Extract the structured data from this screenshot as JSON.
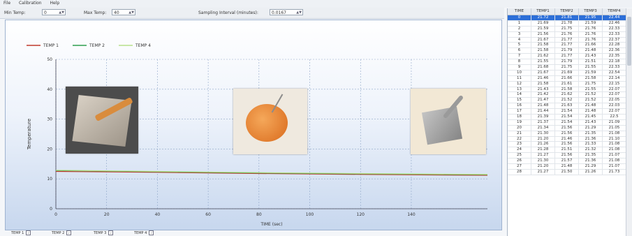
{
  "menu": [
    "File",
    "Calibration",
    "Help"
  ],
  "toolbar": {
    "min_label": "Min Temp:",
    "min_value": "0",
    "max_label": "Max Temp:",
    "max_value": "40",
    "interval_label": "Sampling Interval (minutes):",
    "interval_value": "0.0167"
  },
  "chart_data": {
    "type": "line",
    "xlabel": "TIME (sec)",
    "ylabel": "Temperature",
    "xlim": [
      0,
      170
    ],
    "ylim": [
      0,
      50
    ],
    "xticks": [
      0,
      20,
      40,
      60,
      80,
      100,
      120,
      140
    ],
    "yticks": [
      0,
      10,
      20,
      30,
      40,
      50
    ],
    "grid": true,
    "legend_position": "top-left",
    "series": [
      {
        "name": "TEMP 1",
        "color": "#c0392b",
        "x": [
          0,
          40,
          80,
          120,
          170
        ],
        "values": [
          12.5,
          12.2,
          11.8,
          11.5,
          11.2
        ]
      },
      {
        "name": "TEMP 2",
        "color": "#2e9e4f",
        "x": [
          0,
          40,
          80,
          120,
          170
        ],
        "values": [
          12.8,
          12.4,
          12.0,
          11.7,
          11.4
        ]
      },
      {
        "name": "TEMP 4",
        "color": "#b8e08a",
        "x": [
          0,
          40,
          80,
          120,
          170
        ],
        "values": [
          12.9,
          12.5,
          12.1,
          11.8,
          11.5
        ]
      }
    ]
  },
  "checkboxes": [
    {
      "label": "TEMP 1",
      "checked": "✓"
    },
    {
      "label": "TEMP 2",
      "checked": "✓"
    },
    {
      "label": "TEMP 3",
      "checked": "✓"
    },
    {
      "label": "TEMP 4",
      "checked": "✓"
    }
  ],
  "table": {
    "headers": [
      "TIME",
      "TEMP1",
      "TEMP2",
      "TEMP3",
      "TEMP4"
    ],
    "selected_row": 0,
    "rows": [
      [
        "0",
        "21.72",
        "21.81",
        "21.95",
        "22.44"
      ],
      [
        "1",
        "21.69",
        "21.78",
        "21.59",
        "22.46"
      ],
      [
        "2",
        "21.59",
        "21.75",
        "21.76",
        "22.33"
      ],
      [
        "3",
        "21.56",
        "21.76",
        "21.76",
        "22.33"
      ],
      [
        "4",
        "21.67",
        "21.77",
        "21.76",
        "22.37"
      ],
      [
        "5",
        "21.58",
        "21.77",
        "21.66",
        "22.28"
      ],
      [
        "6",
        "21.58",
        "21.79",
        "21.48",
        "22.36"
      ],
      [
        "7",
        "21.62",
        "21.77",
        "21.43",
        "22.35"
      ],
      [
        "8",
        "21.55",
        "21.79",
        "21.51",
        "22.18"
      ],
      [
        "9",
        "21.68",
        "21.75",
        "21.55",
        "22.33"
      ],
      [
        "10",
        "21.67",
        "21.69",
        "21.59",
        "22.54"
      ],
      [
        "11",
        "21.46",
        "21.66",
        "21.58",
        "22.14"
      ],
      [
        "12",
        "21.58",
        "21.61",
        "21.75",
        "22.15"
      ],
      [
        "13",
        "21.43",
        "21.58",
        "21.55",
        "22.07"
      ],
      [
        "14",
        "21.42",
        "21.62",
        "21.52",
        "22.07"
      ],
      [
        "15",
        "21.47",
        "21.52",
        "21.52",
        "22.05"
      ],
      [
        "16",
        "21.48",
        "21.63",
        "21.48",
        "22.03"
      ],
      [
        "17",
        "21.44",
        "21.54",
        "21.48",
        "22.07"
      ],
      [
        "18",
        "21.39",
        "21.54",
        "21.45",
        "22.5"
      ],
      [
        "19",
        "21.37",
        "21.54",
        "21.43",
        "21.09"
      ],
      [
        "20",
        "21.34",
        "21.56",
        "21.29",
        "21.05"
      ],
      [
        "21",
        "21.30",
        "21.56",
        "21.35",
        "21.08"
      ],
      [
        "22",
        "21.20",
        "21.46",
        "21.36",
        "21.10"
      ],
      [
        "23",
        "21.26",
        "21.56",
        "21.33",
        "21.08"
      ],
      [
        "24",
        "21.28",
        "21.51",
        "21.32",
        "21.08"
      ],
      [
        "25",
        "21.27",
        "21.56",
        "21.35",
        "21.07"
      ],
      [
        "26",
        "21.30",
        "21.57",
        "21.36",
        "21.08"
      ],
      [
        "27",
        "21.20",
        "21.48",
        "21.29",
        "21.07"
      ],
      [
        "28",
        "21.27",
        "21.50",
        "21.26",
        "21.73"
      ]
    ]
  }
}
